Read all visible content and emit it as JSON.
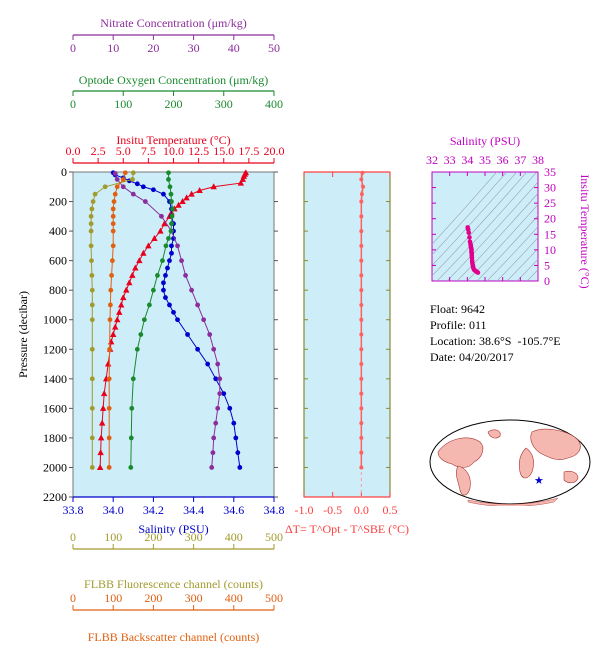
{
  "chart_data": [
    {
      "type": "line",
      "panel": "main-profile",
      "ylabel": "Pressure (decibar)",
      "ylim": [
        2200,
        0
      ],
      "yticks": [
        0,
        200,
        400,
        600,
        800,
        1000,
        1200,
        1400,
        1600,
        1800,
        2000,
        2200
      ],
      "grid": false,
      "axes": {
        "nitrate": {
          "label": "Nitrate Concentration (μm/kg)",
          "range": [
            0,
            50
          ],
          "ticks": [
            0,
            10,
            20,
            30,
            40,
            50
          ],
          "color": "#8b2d9b"
        },
        "oxygen": {
          "label": "Optode Oxygen Concentration (μm/kg)",
          "range": [
            0,
            400
          ],
          "ticks": [
            0,
            100,
            200,
            300,
            400
          ],
          "color": "#1a8a2e"
        },
        "temperature": {
          "label": "Insitu Temperature (°C)",
          "range": [
            0,
            20
          ],
          "ticks": [
            "0.0",
            "2.5",
            "5.0",
            "7.5",
            "10.0",
            "12.5",
            "15.0",
            "17.5",
            "20.0"
          ],
          "color": "#e8001c"
        },
        "salinity": {
          "label": "Salinity (PSU)",
          "range": [
            33.8,
            34.8
          ],
          "ticks": [
            "33.8",
            "34.0",
            "34.2",
            "34.4",
            "34.6",
            "34.8"
          ],
          "color": "#0000cc"
        },
        "fluorescence": {
          "label": "FLBB Fluorescence channel (counts)",
          "range": [
            0,
            500
          ],
          "ticks": [
            0,
            100,
            200,
            300,
            400,
            500
          ],
          "color": "#a39a2e"
        },
        "backscatter": {
          "label": "FLBB Backscatter channel (counts)",
          "range": [
            0,
            500
          ],
          "ticks": [
            0,
            100,
            200,
            300,
            400,
            500
          ],
          "color": "#e06010"
        }
      },
      "series": [
        {
          "name": "temperature",
          "axis": "temperature",
          "color": "#e8001c",
          "marker": "triangle",
          "pressure": [
            5,
            15,
            30,
            50,
            75,
            100,
            125,
            150,
            175,
            200,
            225,
            250,
            275,
            300,
            350,
            400,
            450,
            500,
            550,
            600,
            650,
            700,
            750,
            800,
            850,
            900,
            950,
            1000,
            1050,
            1100,
            1150,
            1200,
            1300,
            1400,
            1500,
            1600,
            1700,
            1800,
            1900,
            2000
          ],
          "values": [
            17.2,
            17.1,
            17.0,
            16.9,
            16.7,
            14.0,
            12.6,
            11.8,
            11.3,
            10.9,
            10.5,
            10.1,
            9.8,
            9.6,
            9.1,
            8.7,
            8.1,
            7.5,
            7.0,
            6.6,
            6.2,
            5.9,
            5.6,
            5.3,
            5.0,
            4.8,
            4.6,
            4.4,
            4.2,
            4.0,
            3.8,
            3.7,
            3.5,
            3.3,
            3.1,
            3.0,
            2.9,
            2.8,
            2.75,
            2.7
          ]
        },
        {
          "name": "salinity",
          "axis": "salinity",
          "color": "#0000cc",
          "marker": "circle",
          "pressure": [
            5,
            20,
            40,
            60,
            80,
            100,
            120,
            150,
            200,
            250,
            300,
            350,
            400,
            450,
            500,
            550,
            600,
            650,
            700,
            750,
            800,
            850,
            900,
            950,
            1000,
            1100,
            1200,
            1300,
            1400,
            1500,
            1600,
            1700,
            1800,
            1900,
            2000
          ],
          "values": [
            34.0,
            34.01,
            34.05,
            34.08,
            34.12,
            34.15,
            34.2,
            34.25,
            34.28,
            34.29,
            34.29,
            34.3,
            34.3,
            34.3,
            34.29,
            34.29,
            34.28,
            34.27,
            34.26,
            34.25,
            34.25,
            34.26,
            34.28,
            34.3,
            34.32,
            34.37,
            34.42,
            34.47,
            34.51,
            34.55,
            34.58,
            34.6,
            34.61,
            34.62,
            34.63
          ]
        },
        {
          "name": "nitrate",
          "axis": "nitrate",
          "color": "#8b2d9b",
          "marker": "circle",
          "pressure": [
            10,
            50,
            100,
            150,
            200,
            300,
            400,
            500,
            600,
            700,
            800,
            900,
            1000,
            1100,
            1200,
            1300,
            1400,
            1500,
            1600,
            1700,
            1800,
            1900,
            2000
          ],
          "values": [
            10.5,
            11.0,
            12.5,
            15.0,
            18.0,
            22.0,
            24.5,
            26.0,
            27.0,
            28.0,
            29.5,
            31.0,
            32.5,
            34.0,
            35.0,
            36.0,
            36.5,
            36.5,
            36.0,
            35.5,
            35.0,
            34.8,
            34.5
          ]
        },
        {
          "name": "oxygen",
          "axis": "oxygen",
          "color": "#1a8a2e",
          "marker": "circle",
          "pressure": [
            5,
            50,
            100,
            150,
            200,
            250,
            300,
            350,
            400,
            450,
            500,
            600,
            700,
            800,
            900,
            1000,
            1100,
            1200,
            1400,
            1600,
            1800,
            2000
          ],
          "values": [
            190,
            190,
            193,
            195,
            196,
            198,
            197,
            196,
            195,
            190,
            185,
            178,
            168,
            160,
            152,
            142,
            135,
            128,
            120,
            117,
            116,
            115
          ]
        },
        {
          "name": "fluorescence",
          "axis": "fluorescence",
          "color": "#a39a2e",
          "marker": "circle",
          "pressure": [
            5,
            50,
            100,
            150,
            200,
            250,
            300,
            350,
            400,
            500,
            600,
            700,
            800,
            900,
            1000,
            1200,
            1400,
            1600,
            1800,
            2000
          ],
          "values": [
            150,
            148,
            80,
            55,
            50,
            47,
            45,
            45,
            45,
            45,
            46,
            47,
            48,
            48,
            48,
            48,
            48,
            48,
            48,
            48
          ]
        },
        {
          "name": "backscatter",
          "axis": "backscatter",
          "color": "#e06010",
          "marker": "circle",
          "pressure": [
            5,
            50,
            100,
            150,
            200,
            250,
            300,
            350,
            400,
            500,
            600,
            700,
            800,
            900,
            1000,
            1200,
            1400,
            1600,
            1800,
            2000
          ],
          "values": [
            130,
            125,
            110,
            105,
            102,
            100,
            100,
            100,
            100,
            100,
            98,
            96,
            94,
            93,
            92,
            91,
            90,
            90,
            90,
            90
          ]
        }
      ]
    },
    {
      "type": "line",
      "panel": "delta-t",
      "xlabel": "ΔT= T^Opt - T^SBE (°C)",
      "xlim": [
        -1.0,
        0.5
      ],
      "xticks": [
        "-1.0",
        "-0.5",
        "0.0",
        "0.5"
      ],
      "ylim": [
        2200,
        0
      ],
      "color": "#ff6060",
      "pressure": [
        5,
        50,
        100,
        150,
        200,
        300,
        400,
        500,
        600,
        700,
        800,
        900,
        1000,
        1100,
        1200,
        1300,
        1400,
        1500,
        1600,
        1700,
        1800,
        1900,
        2000
      ],
      "values": [
        0.02,
        0.0,
        0.03,
        0.01,
        0.0,
        0.0,
        0.0,
        0.0,
        0.0,
        0.0,
        0.0,
        0.0,
        0.0,
        0.0,
        0.0,
        0.0,
        0.0,
        0.0,
        0.0,
        0.0,
        0.0,
        0.0,
        0.0
      ]
    },
    {
      "type": "scatter",
      "panel": "ts-diagram",
      "xlabel": "Salinity (PSU)",
      "ylabel": "Insitu Temperature (°C)",
      "xlim": [
        32,
        38
      ],
      "ylim": [
        0,
        35
      ],
      "xticks": [
        32,
        33,
        34,
        35,
        36,
        37,
        38
      ],
      "yticks": [
        0,
        5,
        10,
        15,
        20,
        25,
        30,
        35
      ],
      "color": "#e0008c",
      "x": [
        34.6,
        34.55,
        34.5,
        34.45,
        34.4,
        34.38,
        34.35,
        34.33,
        34.32,
        34.3,
        34.28,
        34.27,
        34.26,
        34.25,
        34.25,
        34.24,
        34.23,
        34.24,
        34.22,
        34.2,
        34.2,
        34.18,
        34.15,
        34.12,
        34.08,
        34.05,
        34.02
      ],
      "y": [
        2.7,
        2.9,
        3.1,
        3.3,
        3.5,
        3.7,
        4.0,
        4.4,
        4.8,
        5.3,
        5.9,
        6.6,
        7.5,
        8.1,
        8.7,
        9.1,
        9.6,
        10.1,
        10.5,
        10.9,
        11.3,
        11.8,
        12.6,
        14.0,
        15.5,
        16.5,
        17.2
      ]
    }
  ],
  "info": {
    "float_label": "Float:",
    "float_value": "9642",
    "profile_label": "Profile:",
    "profile_value": "011",
    "location_label": "Location:",
    "location_value": "38.6°S  -105.7°E",
    "date_label": "Date:",
    "date_value": "04/20/2017"
  },
  "colors": {
    "plot_bg": "#cdeef8",
    "map_ocean": "#ffffff",
    "map_land": "#f4b8b0",
    "map_marker": "#0000cc"
  }
}
